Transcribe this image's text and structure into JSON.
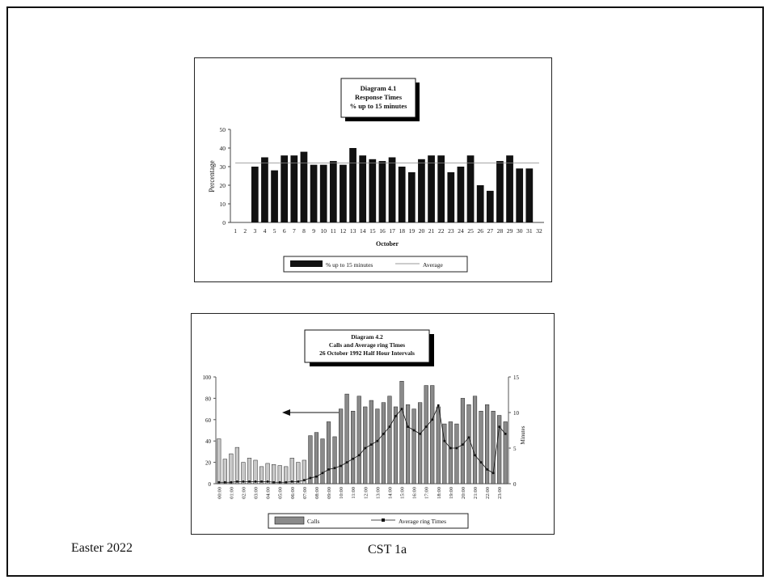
{
  "footer": {
    "left": "Easter 2022",
    "center": "CST 1a"
  },
  "chart_data": [
    {
      "type": "bar",
      "title": [
        "Diagram 4.1",
        "Response Times",
        "% up to 15 minutes"
      ],
      "xlabel": "October",
      "ylabel": "Percentage",
      "ylim": [
        0,
        50
      ],
      "yticks": [
        0,
        10,
        20,
        30,
        40,
        50
      ],
      "categories": [
        "1",
        "2",
        "3",
        "4",
        "5",
        "6",
        "7",
        "8",
        "9",
        "10",
        "11",
        "12",
        "13",
        "14",
        "15",
        "16",
        "17",
        "18",
        "19",
        "20",
        "21",
        "22",
        "23",
        "24",
        "25",
        "26",
        "27",
        "28",
        "29",
        "30",
        "31",
        "32"
      ],
      "series": [
        {
          "name": "% up to 15 minutes",
          "type": "bar",
          "color": "#111111",
          "values": [
            null,
            null,
            30,
            35,
            28,
            36,
            36,
            38,
            31,
            31,
            33,
            31,
            40,
            36,
            34,
            33,
            35,
            30,
            27,
            34,
            36,
            36,
            27,
            30,
            36,
            20,
            17,
            33,
            36,
            29,
            29,
            null
          ]
        },
        {
          "name": "Average",
          "type": "line",
          "color": "#888888",
          "values": [
            32,
            32,
            32,
            32,
            32,
            32,
            32,
            32,
            32,
            32,
            32,
            32,
            32,
            32,
            32,
            32,
            32,
            32,
            32,
            32,
            32,
            32,
            32,
            32,
            32,
            32,
            32,
            32,
            32,
            32,
            32,
            32
          ]
        }
      ],
      "legend": "bottom",
      "grid": false
    },
    {
      "type": "bar",
      "title": [
        "Diagram 4.2",
        "Calls and Average ring Times",
        "26 October 1992  Half Hour Intervals"
      ],
      "xlabel": "",
      "ylabel": "",
      "ylabel_right": "Minutes",
      "ylim": [
        0,
        100
      ],
      "yticks": [
        0,
        20,
        40,
        60,
        80,
        100
      ],
      "ylim_right": [
        0,
        15
      ],
      "yticks_right": [
        0,
        5,
        10,
        15
      ],
      "tick_labels": [
        "00:00",
        "01:00",
        "02:00",
        "03:00",
        "04:00",
        "05:00",
        "06:00",
        "07:00",
        "08:00",
        "09:00",
        "10:00",
        "11:00",
        "12:00",
        "13:00",
        "14:00",
        "15:00",
        "16:00",
        "17:00",
        "18:00",
        "19:00",
        "20:00",
        "21:00",
        "22:00",
        "23:00"
      ],
      "series": [
        {
          "name": "Calls",
          "type": "bar",
          "color": "#8a8a8a",
          "values": [
            42,
            23,
            28,
            34,
            20,
            24,
            22,
            16,
            19,
            18,
            17,
            16,
            24,
            20,
            22,
            45,
            48,
            42,
            58,
            44,
            70,
            84,
            68,
            82,
            72,
            78,
            70,
            76,
            82,
            72,
            96,
            74,
            70,
            76,
            92,
            92,
            72,
            56,
            58,
            56,
            80,
            74,
            82,
            68,
            74,
            68,
            64,
            58
          ]
        },
        {
          "name": "Average ring Times",
          "type": "line",
          "color": "#111111",
          "values": [
            0.2,
            0.2,
            0.2,
            0.3,
            0.3,
            0.3,
            0.3,
            0.3,
            0.3,
            0.2,
            0.2,
            0.2,
            0.3,
            0.3,
            0.5,
            0.8,
            1.0,
            1.5,
            2.0,
            2.2,
            2.5,
            3.0,
            3.5,
            4.0,
            5.0,
            5.5,
            6.0,
            7.0,
            8.0,
            9.5,
            10.5,
            8.0,
            7.5,
            7.0,
            8.0,
            9.0,
            11.0,
            6.0,
            5.0,
            5.0,
            5.5,
            6.5,
            4.0,
            3.0,
            2.0,
            1.5,
            8.0,
            7.0
          ]
        }
      ],
      "annotations": [
        "arrow pointing left toward calls axis"
      ],
      "legend": "bottom",
      "grid": false
    }
  ]
}
